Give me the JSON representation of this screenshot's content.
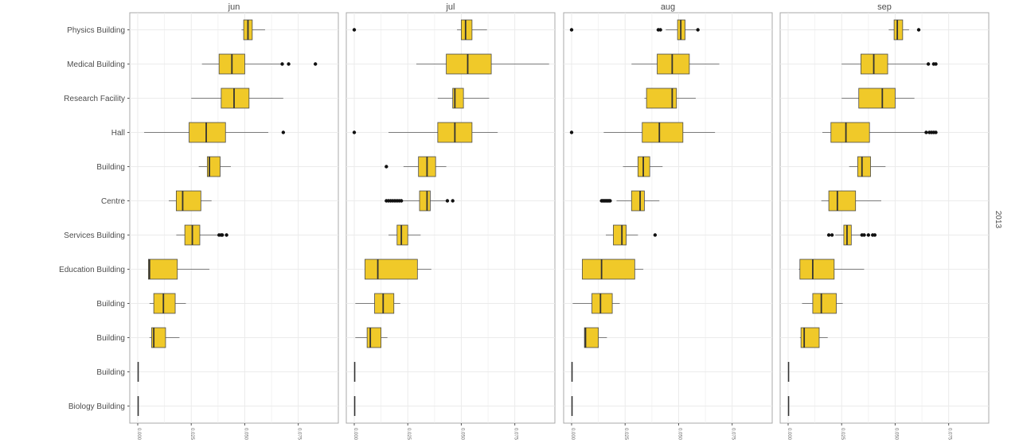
{
  "chart_data": {
    "type": "boxplot",
    "orientation": "horizontal",
    "facet_strip": "2013",
    "facets": [
      "jun",
      "jul",
      "aug",
      "sep"
    ],
    "categories": [
      "Physics Building",
      "Medical Building",
      "Research Facility",
      "Hall",
      "Building",
      "Centre",
      "Services Building",
      "Education Building",
      "Building",
      "Building",
      "Building",
      "Biology Building"
    ],
    "xlim": [
      0,
      0.09
    ],
    "x_ticks": [
      0,
      0.025,
      0.05,
      0.075
    ],
    "x_tick_labels": [
      "0.000",
      "0.025",
      "0.050",
      "0.075"
    ],
    "grid": true,
    "fill_color": "#f0c929",
    "panels": [
      {
        "facet": "jun",
        "boxes": [
          {
            "wlo": 0.0485,
            "q1": 0.0495,
            "med": 0.0515,
            "q3": 0.0535,
            "whi": 0.0595,
            "outliers": []
          },
          {
            "wlo": 0.03,
            "q1": 0.038,
            "med": 0.044,
            "q3": 0.05,
            "whi": 0.068,
            "outliers": [
              0.0675,
              0.0705,
              0.083
            ]
          },
          {
            "wlo": 0.025,
            "q1": 0.039,
            "med": 0.045,
            "q3": 0.052,
            "whi": 0.068,
            "outliers": []
          },
          {
            "wlo": 0.003,
            "q1": 0.024,
            "med": 0.032,
            "q3": 0.041,
            "whi": 0.061,
            "outliers": [
              0.068
            ]
          },
          {
            "wlo": 0.0285,
            "q1": 0.0325,
            "med": 0.0335,
            "q3": 0.0385,
            "whi": 0.0435,
            "outliers": []
          },
          {
            "wlo": 0.0145,
            "q1": 0.018,
            "med": 0.021,
            "q3": 0.0295,
            "whi": 0.0345,
            "outliers": []
          },
          {
            "wlo": 0.018,
            "q1": 0.022,
            "med": 0.0255,
            "q3": 0.029,
            "whi": 0.0385,
            "outliers": [
              0.038,
              0.039,
              0.0395,
              0.0415
            ]
          },
          {
            "wlo": 0.005,
            "q1": 0.005,
            "med": 0.0055,
            "q3": 0.0185,
            "whi": 0.0335,
            "outliers": []
          },
          {
            "wlo": 0.0055,
            "q1": 0.0075,
            "med": 0.012,
            "q3": 0.0175,
            "whi": 0.0225,
            "outliers": []
          },
          {
            "wlo": 0.0055,
            "q1": 0.0065,
            "med": 0.0075,
            "q3": 0.013,
            "whi": 0.0195,
            "outliers": []
          },
          {
            "wlo": 0.0002,
            "q1": 0.0002,
            "med": 0.0002,
            "q3": 0.0002,
            "whi": 0.0002,
            "outliers": []
          },
          {
            "wlo": 0.0002,
            "q1": 0.0002,
            "med": 0.0002,
            "q3": 0.0002,
            "whi": 0.0002,
            "outliers": []
          }
        ]
      },
      {
        "facet": "jul",
        "boxes": [
          {
            "wlo": 0.048,
            "q1": 0.05,
            "med": 0.052,
            "q3": 0.055,
            "whi": 0.062,
            "outliers": [
              0.0
            ]
          },
          {
            "wlo": 0.029,
            "q1": 0.043,
            "med": 0.053,
            "q3": 0.064,
            "whi": 0.091,
            "outliers": []
          },
          {
            "wlo": 0.039,
            "q1": 0.046,
            "med": 0.047,
            "q3": 0.051,
            "whi": 0.063,
            "outliers": []
          },
          {
            "wlo": 0.016,
            "q1": 0.039,
            "med": 0.047,
            "q3": 0.055,
            "whi": 0.067,
            "outliers": [
              0.0
            ]
          },
          {
            "wlo": 0.023,
            "q1": 0.03,
            "med": 0.034,
            "q3": 0.038,
            "whi": 0.043,
            "outliers": [
              0.015
            ]
          },
          {
            "wlo": 0.0225,
            "q1": 0.0305,
            "med": 0.034,
            "q3": 0.0355,
            "whi": 0.044,
            "outliers": [
              0.015,
              0.016,
              0.017,
              0.018,
              0.019,
              0.02,
              0.021,
              0.022,
              0.0435,
              0.046
            ]
          },
          {
            "wlo": 0.016,
            "q1": 0.02,
            "med": 0.022,
            "q3": 0.025,
            "whi": 0.031,
            "outliers": []
          },
          {
            "wlo": 0.005,
            "q1": 0.005,
            "med": 0.011,
            "q3": 0.0295,
            "whi": 0.036,
            "outliers": []
          },
          {
            "wlo": 0.0005,
            "q1": 0.0095,
            "med": 0.0135,
            "q3": 0.0185,
            "whi": 0.0215,
            "outliers": []
          },
          {
            "wlo": 0.0005,
            "q1": 0.006,
            "med": 0.0075,
            "q3": 0.0125,
            "whi": 0.0155,
            "outliers": []
          },
          {
            "wlo": 0.0002,
            "q1": 0.0002,
            "med": 0.0002,
            "q3": 0.0002,
            "whi": 0.0002,
            "outliers": []
          },
          {
            "wlo": 0.0002,
            "q1": 0.0002,
            "med": 0.0002,
            "q3": 0.0002,
            "whi": 0.0002,
            "outliers": []
          }
        ]
      },
      {
        "facet": "aug",
        "boxes": [
          {
            "wlo": 0.044,
            "q1": 0.0495,
            "med": 0.051,
            "q3": 0.053,
            "whi": 0.059,
            "outliers": [
              0.0,
              0.0405,
              0.0415,
              0.059
            ]
          },
          {
            "wlo": 0.028,
            "q1": 0.04,
            "med": 0.047,
            "q3": 0.055,
            "whi": 0.069,
            "outliers": []
          },
          {
            "wlo": 0.034,
            "q1": 0.035,
            "med": 0.047,
            "q3": 0.049,
            "whi": 0.058,
            "outliers": []
          },
          {
            "wlo": 0.015,
            "q1": 0.033,
            "med": 0.041,
            "q3": 0.052,
            "whi": 0.067,
            "outliers": [
              0.0
            ]
          },
          {
            "wlo": 0.024,
            "q1": 0.031,
            "med": 0.0335,
            "q3": 0.0365,
            "whi": 0.0425,
            "outliers": []
          },
          {
            "wlo": 0.021,
            "q1": 0.028,
            "med": 0.032,
            "q3": 0.034,
            "whi": 0.041,
            "outliers": [
              0.014,
              0.0145,
              0.015,
              0.0155,
              0.016,
              0.0165,
              0.017,
              0.0175,
              0.018
            ]
          },
          {
            "wlo": 0.016,
            "q1": 0.0195,
            "med": 0.0235,
            "q3": 0.0255,
            "whi": 0.031,
            "outliers": [
              0.039
            ]
          },
          {
            "wlo": 0.005,
            "q1": 0.005,
            "med": 0.014,
            "q3": 0.0295,
            "whi": 0.0335,
            "outliers": []
          },
          {
            "wlo": 0.0005,
            "q1": 0.0095,
            "med": 0.0135,
            "q3": 0.019,
            "whi": 0.0225,
            "outliers": []
          },
          {
            "wlo": 0.006,
            "q1": 0.006,
            "med": 0.0065,
            "q3": 0.0125,
            "whi": 0.0165,
            "outliers": []
          },
          {
            "wlo": 0.0002,
            "q1": 0.0002,
            "med": 0.0002,
            "q3": 0.0002,
            "whi": 0.0002,
            "outliers": []
          },
          {
            "wlo": 0.0002,
            "q1": 0.0002,
            "med": 0.0002,
            "q3": 0.0002,
            "whi": 0.0002,
            "outliers": []
          }
        ]
      },
      {
        "facet": "sep",
        "boxes": [
          {
            "wlo": 0.047,
            "q1": 0.0495,
            "med": 0.051,
            "q3": 0.0535,
            "whi": 0.0565,
            "outliers": [
              0.061
            ]
          },
          {
            "wlo": 0.025,
            "q1": 0.034,
            "med": 0.04,
            "q3": 0.0465,
            "whi": 0.065,
            "outliers": [
              0.0655,
              0.068,
              0.069
            ]
          },
          {
            "wlo": 0.025,
            "q1": 0.033,
            "med": 0.044,
            "q3": 0.05,
            "whi": 0.059,
            "outliers": []
          },
          {
            "wlo": 0.016,
            "q1": 0.02,
            "med": 0.027,
            "q3": 0.038,
            "whi": 0.064,
            "outliers": [
              0.0645,
              0.066,
              0.067,
              0.068,
              0.069
            ]
          },
          {
            "wlo": 0.0285,
            "q1": 0.0325,
            "med": 0.0345,
            "q3": 0.0385,
            "whi": 0.0455,
            "outliers": []
          },
          {
            "wlo": 0.0155,
            "q1": 0.019,
            "med": 0.023,
            "q3": 0.0315,
            "whi": 0.0435,
            "outliers": []
          },
          {
            "wlo": 0.022,
            "q1": 0.026,
            "med": 0.0275,
            "q3": 0.0295,
            "whi": 0.0365,
            "outliers": [
              0.019,
              0.0205,
              0.0345,
              0.0355,
              0.0375,
              0.0395,
              0.0405
            ]
          },
          {
            "wlo": 0.005,
            "q1": 0.0055,
            "med": 0.0115,
            "q3": 0.0215,
            "whi": 0.0355,
            "outliers": []
          },
          {
            "wlo": 0.0065,
            "q1": 0.0115,
            "med": 0.0155,
            "q3": 0.0225,
            "whi": 0.0255,
            "outliers": []
          },
          {
            "wlo": 0.0055,
            "q1": 0.006,
            "med": 0.0075,
            "q3": 0.0145,
            "whi": 0.0185,
            "outliers": []
          },
          {
            "wlo": 0.0002,
            "q1": 0.0002,
            "med": 0.0002,
            "q3": 0.0002,
            "whi": 0.0002,
            "outliers": []
          },
          {
            "wlo": 0.0002,
            "q1": 0.0002,
            "med": 0.0002,
            "q3": 0.0002,
            "whi": 0.0002,
            "outliers": []
          }
        ]
      }
    ]
  }
}
